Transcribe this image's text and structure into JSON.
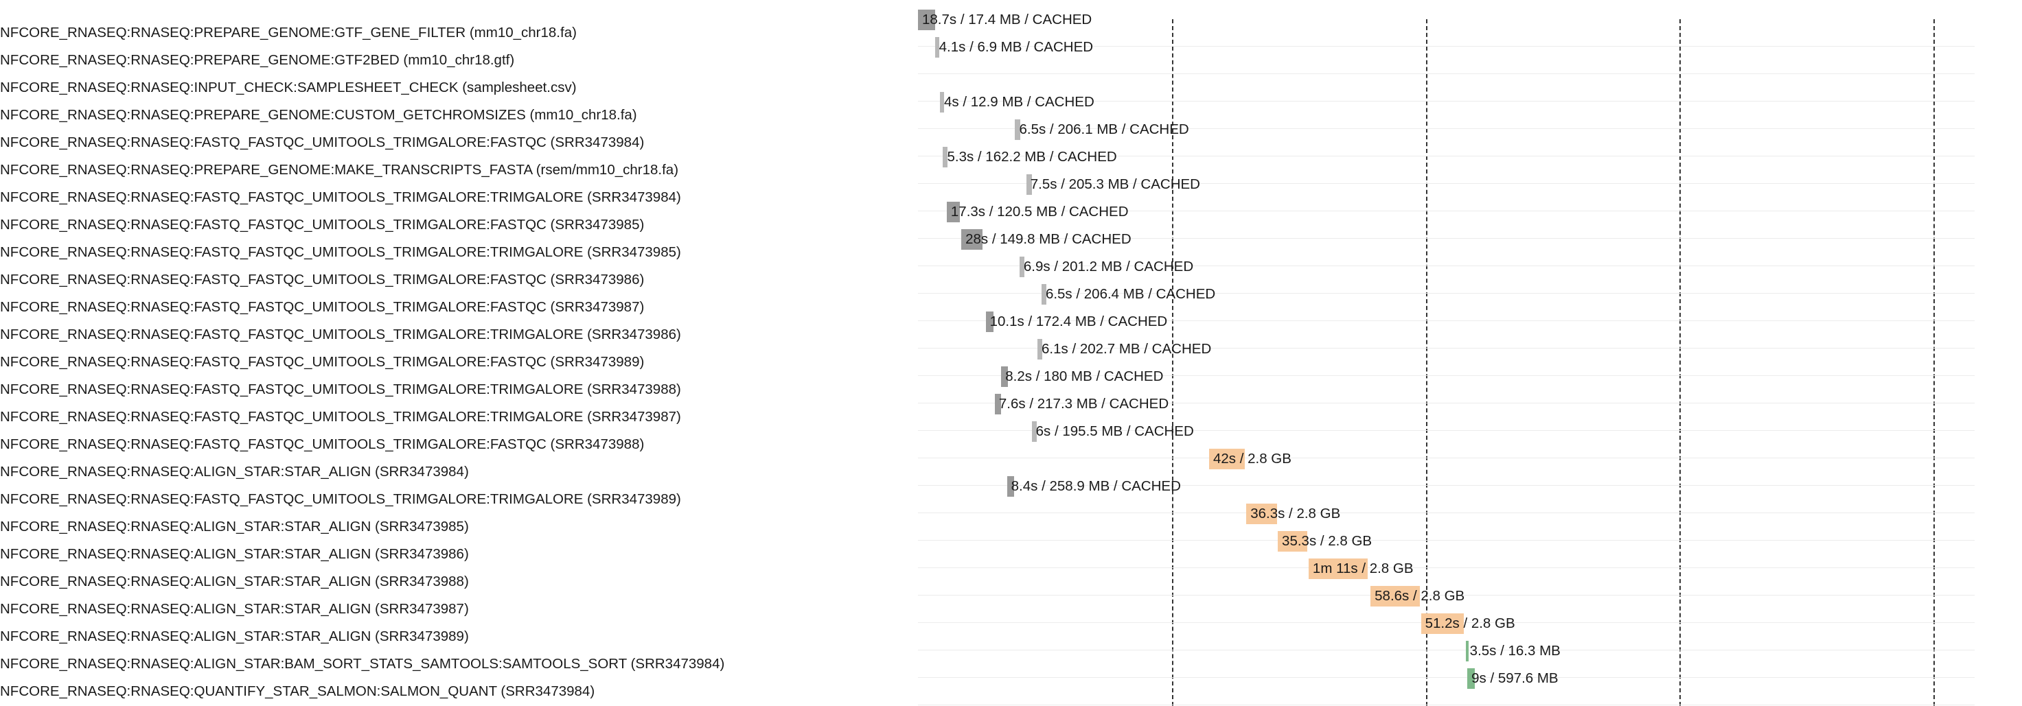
{
  "colors": {
    "cached": "#9a9a9a",
    "cached_light": "#b8b8b8",
    "align": "#f7c99c",
    "sort": "#7fb98a",
    "grid": "#333333",
    "row_sep": "#ececec"
  },
  "timeline": {
    "grid_lines_sec": [
      75,
      150,
      225,
      300
    ],
    "tasks": [
      {
        "label": "NFCORE_RNASEQ:RNASEQ:PREPARE_GENOME:GTF_GENE_FILTER (mm10_chr18.fa)",
        "bar_text": "18.7s / 17.4 MB / CACHED",
        "start_sec": 0,
        "duration_sec": 5,
        "kind": "cached"
      },
      {
        "label": "NFCORE_RNASEQ:RNASEQ:PREPARE_GENOME:GTF2BED (mm10_chr18.gtf)",
        "bar_text": "4.1s / 6.9 MB / CACHED",
        "start_sec": 5.0,
        "duration_sec": 1.2,
        "kind": "cached_light"
      },
      {
        "label": "NFCORE_RNASEQ:RNASEQ:INPUT_CHECK:SAMPLESHEET_CHECK (samplesheet.csv)",
        "bar_text": "",
        "start_sec": null,
        "duration_sec": null,
        "kind": "none"
      },
      {
        "label": "NFCORE_RNASEQ:RNASEQ:PREPARE_GENOME:CUSTOM_GETCHROMSIZES (mm10_chr18.fa)",
        "bar_text": "4s / 12.9 MB / CACHED",
        "start_sec": 6.5,
        "duration_sec": 1.2,
        "kind": "cached_light"
      },
      {
        "label": "NFCORE_RNASEQ:RNASEQ:FASTQ_FASTQC_UMITOOLS_TRIMGALORE:FASTQC (SRR3473984)",
        "bar_text": "6.5s / 206.1 MB / CACHED",
        "start_sec": 28.7,
        "duration_sec": 1.5,
        "kind": "cached_light"
      },
      {
        "label": "NFCORE_RNASEQ:RNASEQ:PREPARE_GENOME:MAKE_TRANSCRIPTS_FASTA (rsem/mm10_chr18.fa)",
        "bar_text": "5.3s / 162.2 MB / CACHED",
        "start_sec": 7.4,
        "duration_sec": 1.3,
        "kind": "cached_light"
      },
      {
        "label": "NFCORE_RNASEQ:RNASEQ:FASTQ_FASTQC_UMITOOLS_TRIMGALORE:TRIMGALORE (SRR3473984)",
        "bar_text": "7.5s / 205.3 MB / CACHED",
        "start_sec": 32.0,
        "duration_sec": 1.7,
        "kind": "cached_light"
      },
      {
        "label": "NFCORE_RNASEQ:RNASEQ:FASTQ_FASTQC_UMITOOLS_TRIMGALORE:FASTQC (SRR3473985)",
        "bar_text": "17.3s / 120.5 MB / CACHED",
        "start_sec": 8.5,
        "duration_sec": 3.8,
        "kind": "cached"
      },
      {
        "label": "NFCORE_RNASEQ:RNASEQ:FASTQ_FASTQC_UMITOOLS_TRIMGALORE:TRIMGALORE (SRR3473985)",
        "bar_text": "28s / 149.8 MB / CACHED",
        "start_sec": 12.8,
        "duration_sec": 6.3,
        "kind": "cached"
      },
      {
        "label": "NFCORE_RNASEQ:RNASEQ:FASTQ_FASTQC_UMITOOLS_TRIMGALORE:FASTQC (SRR3473986)",
        "bar_text": "6.9s / 201.2 MB / CACHED",
        "start_sec": 30.0,
        "duration_sec": 1.5,
        "kind": "cached_light"
      },
      {
        "label": "NFCORE_RNASEQ:RNASEQ:FASTQ_FASTQC_UMITOOLS_TRIMGALORE:FASTQC (SRR3473987)",
        "bar_text": "6.5s / 206.4 MB / CACHED",
        "start_sec": 36.5,
        "duration_sec": 1.5,
        "kind": "cached_light"
      },
      {
        "label": "NFCORE_RNASEQ:RNASEQ:FASTQ_FASTQC_UMITOOLS_TRIMGALORE:TRIMGALORE (SRR3473986)",
        "bar_text": "10.1s / 172.4 MB / CACHED",
        "start_sec": 20.0,
        "duration_sec": 2.4,
        "kind": "cached"
      },
      {
        "label": "NFCORE_RNASEQ:RNASEQ:FASTQ_FASTQC_UMITOOLS_TRIMGALORE:FASTQC (SRR3473989)",
        "bar_text": "6.1s / 202.7 MB / CACHED",
        "start_sec": 35.3,
        "duration_sec": 1.5,
        "kind": "cached_light"
      },
      {
        "label": "NFCORE_RNASEQ:RNASEQ:FASTQ_FASTQC_UMITOOLS_TRIMGALORE:TRIMGALORE (SRR3473988)",
        "bar_text": "8.2s / 180 MB / CACHED",
        "start_sec": 24.6,
        "duration_sec": 2.0,
        "kind": "cached"
      },
      {
        "label": "NFCORE_RNASEQ:RNASEQ:FASTQ_FASTQC_UMITOOLS_TRIMGALORE:TRIMGALORE (SRR3473987)",
        "bar_text": "7.6s / 217.3 MB / CACHED",
        "start_sec": 22.7,
        "duration_sec": 1.8,
        "kind": "cached"
      },
      {
        "label": "NFCORE_RNASEQ:RNASEQ:FASTQ_FASTQC_UMITOOLS_TRIMGALORE:FASTQC (SRR3473988)",
        "bar_text": "6s / 195.5 MB / CACHED",
        "start_sec": 33.6,
        "duration_sec": 1.4,
        "kind": "cached_light"
      },
      {
        "label": "NFCORE_RNASEQ:RNASEQ:ALIGN_STAR:STAR_ALIGN (SRR3473984)",
        "bar_text": "42s / 2.8 GB",
        "start_sec": 86.0,
        "duration_sec": 10.5,
        "kind": "align"
      },
      {
        "label": "NFCORE_RNASEQ:RNASEQ:FASTQ_FASTQC_UMITOOLS_TRIMGALORE:TRIMGALORE (SRR3473989)",
        "bar_text": "8.4s / 258.9 MB / CACHED",
        "start_sec": 26.3,
        "duration_sec": 2.0,
        "kind": "cached"
      },
      {
        "label": "NFCORE_RNASEQ:RNASEQ:ALIGN_STAR:STAR_ALIGN (SRR3473985)",
        "bar_text": "36.3s / 2.8 GB",
        "start_sec": 97.0,
        "duration_sec": 9.0,
        "kind": "align"
      },
      {
        "label": "NFCORE_RNASEQ:RNASEQ:ALIGN_STAR:STAR_ALIGN (SRR3473986)",
        "bar_text": "35.3s / 2.8 GB",
        "start_sec": 106.3,
        "duration_sec": 8.8,
        "kind": "align"
      },
      {
        "label": "NFCORE_RNASEQ:RNASEQ:ALIGN_STAR:STAR_ALIGN (SRR3473988)",
        "bar_text": "1m 11s / 2.8 GB",
        "start_sec": 115.4,
        "duration_sec": 17.5,
        "kind": "align"
      },
      {
        "label": "NFCORE_RNASEQ:RNASEQ:ALIGN_STAR:STAR_ALIGN (SRR3473987)",
        "bar_text": "58.6s / 2.8 GB",
        "start_sec": 133.7,
        "duration_sec": 14.5,
        "kind": "align"
      },
      {
        "label": "NFCORE_RNASEQ:RNASEQ:ALIGN_STAR:STAR_ALIGN (SRR3473989)",
        "bar_text": "51.2s / 2.8 GB",
        "start_sec": 148.6,
        "duration_sec": 12.6,
        "kind": "align"
      },
      {
        "label": "NFCORE_RNASEQ:RNASEQ:ALIGN_STAR:BAM_SORT_STATS_SAMTOOLS:SAMTOOLS_SORT (SRR3473984)",
        "bar_text": "3.5s / 16.3 MB",
        "start_sec": 161.8,
        "duration_sec": 0.9,
        "kind": "sort"
      },
      {
        "label": "NFCORE_RNASEQ:RNASEQ:QUANTIFY_STAR_SALMON:SALMON_QUANT (SRR3473984)",
        "bar_text": "9s / 597.6 MB",
        "start_sec": 162.3,
        "duration_sec": 2.2,
        "kind": "sort"
      }
    ]
  }
}
